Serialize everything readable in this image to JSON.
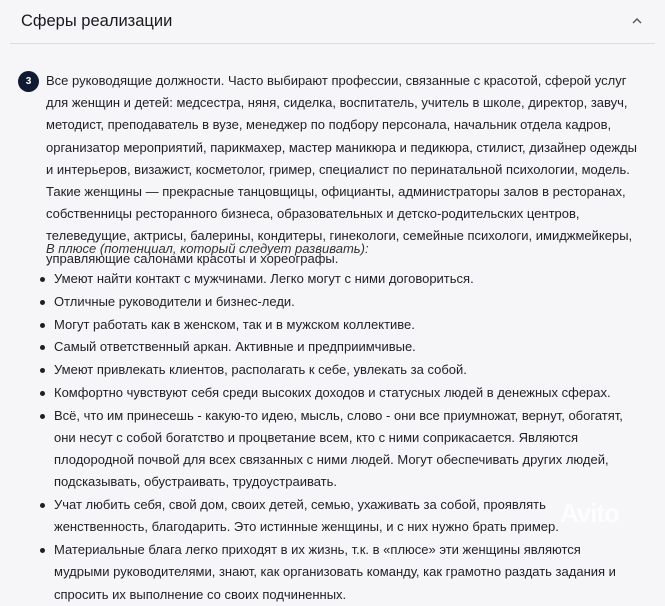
{
  "header": {
    "title": "Сферы реализации",
    "collapse_icon": "chevron-up-icon"
  },
  "badge": "3",
  "paragraph": "Все руководящие должности. Часто выбирают профессии, связанные с красотой, сферой услуг для женщин и детей: медсестра, няня, сиделка, воспитатель, учитель в школе, директор, завуч, методист, преподаватель в вузе, менеджер по подбору персонала, начальник отдела кадров, организатор мероприятий, парикмахер, мастер маникюра и педикюра, стилист, дизайнер одежды и интерьеров, визажист, косметолог, гример, специалист по перинатальной психологии, модель. Такие женщины — прекрасные танцовщицы, официанты, администраторы залов в ресторанах, собственницы ресторанного бизнеса, образовательных и детско-родительских центров, телеведущие, актрисы, балерины, кондитеры, гинекологи, семейные психологи, имиджмейкеры, управляющие салонами красоты и хореографы.",
  "plus_heading": "В плюсе (потенциал, который следует развивать):",
  "items": [
    "Умеют найти контакт с мужчинами. Легко могут с ними договориться.",
    "Отличные руководители и бизнес-леди.",
    "Могут работать как в женском, так и в мужском коллективе.",
    "Самый ответственный аркан. Активные и предприимчивые.",
    "Умеют привлекать клиентов, располагать к себе, увлекать за собой.",
    "Комфортно чувствуют себя среди высоких доходов и статусных людей в денежных сферах.",
    "Всё, что им принесешь - какую-то идею, мысль, слово - они все приумножат, вернут, обогатят, они несут с собой богатство и процветание всем, кто с ними соприкасается. Являются плодородной почвой для всех связанных с ними людей. Могут обеспечивать других людей, подсказывать, обустраивать, трудоустраивать.",
    "Учат любить себя, свой дом, своих детей, семью, ухаживать за собой, проявлять женственность, благодарить. Это истинные женщины, и с них нужно брать пример.",
    "Материальные блага легко приходят в их жизнь, т.к. в «плюсе» эти женщины являются мудрыми руководителями, знают, как организовать команду, как грамотно раздать задания и спросить их выполнение со своих подчиненных."
  ],
  "watermark": "Avito"
}
